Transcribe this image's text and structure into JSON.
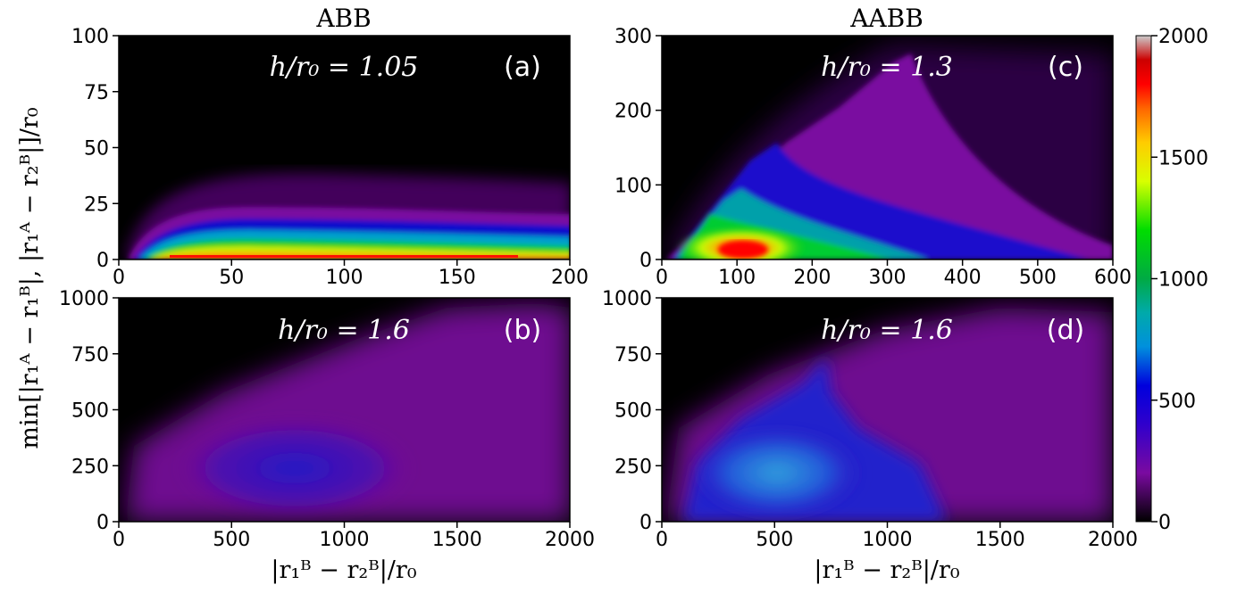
{
  "column_titles": [
    "ABB",
    "AABB"
  ],
  "y_label": "min[|r₁ᴬ − r₁ᴮ|, |r₁ᴬ − r₂ᴮ|]/r₀",
  "x_label": "|r₁ᴮ − r₂ᴮ|/r₀",
  "colorbar": {
    "ticks": [
      "0",
      "500",
      "1000",
      "1500",
      "2000"
    ],
    "range": [
      0,
      2000
    ],
    "colormap": "nipy_spectral",
    "colors": [
      "#000000",
      "#7a0aa0",
      "#0000dd",
      "#00a0cc",
      "#00aa44",
      "#00dd00",
      "#d8ff00",
      "#ffaa00",
      "#ff0000",
      "#cc0000",
      "#cccccc"
    ]
  },
  "chart_data": [
    {
      "type": "heatmap",
      "panel": "(a)",
      "column_title": "ABB",
      "annotation": "h/r₀ = 1.05",
      "xlim": [
        0,
        200
      ],
      "ylim": [
        0,
        100
      ],
      "xticks": [
        "0",
        "50",
        "100",
        "150",
        "200"
      ],
      "yticks": [
        "0",
        "25",
        "50",
        "75",
        "100"
      ]
    },
    {
      "type": "heatmap",
      "panel": "(c)",
      "column_title": "AABB",
      "annotation": "h/r₀ = 1.3",
      "xlim": [
        0,
        600
      ],
      "ylim": [
        0,
        300
      ],
      "xticks": [
        "0",
        "100",
        "200",
        "300",
        "400",
        "500",
        "600"
      ],
      "yticks": [
        "0",
        "100",
        "200",
        "300"
      ]
    },
    {
      "type": "heatmap",
      "panel": "(b)",
      "annotation": "h/r₀ = 1.6",
      "xlim": [
        0,
        2000
      ],
      "ylim": [
        0,
        1000
      ],
      "xticks": [
        "0",
        "500",
        "1000",
        "1500",
        "2000"
      ],
      "yticks": [
        "0",
        "250",
        "500",
        "750",
        "1000"
      ]
    },
    {
      "type": "heatmap",
      "panel": "(d)",
      "annotation": "h/r₀ = 1.6",
      "xlim": [
        0,
        2000
      ],
      "ylim": [
        0,
        1000
      ],
      "xticks": [
        "0",
        "500",
        "1000",
        "1500",
        "2000"
      ],
      "yticks": [
        "0",
        "250",
        "500",
        "750",
        "1000"
      ]
    }
  ]
}
